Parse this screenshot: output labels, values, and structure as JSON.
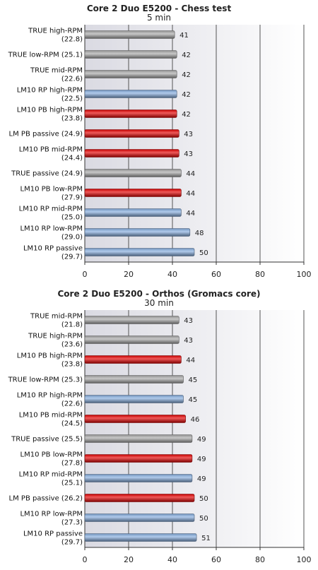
{
  "chart_data": [
    {
      "type": "bar",
      "orientation": "horizontal",
      "title": "Core 2 Duo E5200 - Chess test",
      "subtitle": "5 min",
      "xlim": [
        0,
        100
      ],
      "xticks": [
        "0",
        "20",
        "40",
        "60",
        "80",
        "100"
      ],
      "grid": true,
      "colors": {
        "TRUE": "#a9a9a9",
        "PB": "#e60000",
        "RP": "#86aee0"
      },
      "categories": [
        {
          "label": [
            "TRUE high-RPM",
            "(22.8)"
          ],
          "value": 41,
          "group": "TRUE"
        },
        {
          "label": [
            "TRUE low-RPM (25.1)"
          ],
          "value": 42,
          "group": "TRUE"
        },
        {
          "label": [
            "TRUE mid-RPM",
            "(22.6)"
          ],
          "value": 42,
          "group": "TRUE"
        },
        {
          "label": [
            "LM10 RP high-RPM",
            "(22.5)"
          ],
          "value": 42,
          "group": "RP"
        },
        {
          "label": [
            "LM10 PB high-RPM",
            "(23.8)"
          ],
          "value": 42,
          "group": "PB"
        },
        {
          "label": [
            "LM PB passive (24.9)"
          ],
          "value": 43,
          "group": "PB"
        },
        {
          "label": [
            "LM10 PB mid-RPM",
            "(24.4)"
          ],
          "value": 43,
          "group": "PB"
        },
        {
          "label": [
            "TRUE passive (24.9)"
          ],
          "value": 44,
          "group": "TRUE"
        },
        {
          "label": [
            "LM10 PB low-RPM",
            "(27.9)"
          ],
          "value": 44,
          "group": "PB"
        },
        {
          "label": [
            "LM10 RP mid-RPM",
            "(25.0)"
          ],
          "value": 44,
          "group": "RP"
        },
        {
          "label": [
            "LM10 RP low-RPM",
            "(29.0)"
          ],
          "value": 48,
          "group": "RP"
        },
        {
          "label": [
            "LM10 RP passive",
            "(29.7)"
          ],
          "value": 50,
          "group": "RP"
        }
      ]
    },
    {
      "type": "bar",
      "orientation": "horizontal",
      "title": "Core 2 Duo E5200 - Orthos (Gromacs core)",
      "subtitle": "30 min",
      "xlim": [
        0,
        100
      ],
      "xticks": [
        "0",
        "20",
        "40",
        "60",
        "80",
        "100"
      ],
      "grid": true,
      "colors": {
        "TRUE": "#a9a9a9",
        "PB": "#e60000",
        "RP": "#86aee0"
      },
      "categories": [
        {
          "label": [
            "TRUE mid-RPM",
            "(21.8)"
          ],
          "value": 43,
          "group": "TRUE"
        },
        {
          "label": [
            "TRUE high-RPM",
            "(23.6)"
          ],
          "value": 43,
          "group": "TRUE"
        },
        {
          "label": [
            "LM10 PB high-RPM",
            "(23.8)"
          ],
          "value": 44,
          "group": "PB"
        },
        {
          "label": [
            "TRUE low-RPM (25.3)"
          ],
          "value": 45,
          "group": "TRUE"
        },
        {
          "label": [
            "LM10 RP high-RPM",
            "(22.6)"
          ],
          "value": 45,
          "group": "RP"
        },
        {
          "label": [
            "LM10 PB mid-RPM",
            "(24.5)"
          ],
          "value": 46,
          "group": "PB"
        },
        {
          "label": [
            "TRUE passive (25.5)"
          ],
          "value": 49,
          "group": "TRUE"
        },
        {
          "label": [
            "LM10 PB low-RPM",
            "(27.8)"
          ],
          "value": 49,
          "group": "PB"
        },
        {
          "label": [
            "LM10 RP mid-RPM",
            "(25.1)"
          ],
          "value": 49,
          "group": "RP"
        },
        {
          "label": [
            "LM PB passive (26.2)"
          ],
          "value": 50,
          "group": "PB"
        },
        {
          "label": [
            "LM10 RP low-RPM",
            "(27.3)"
          ],
          "value": 50,
          "group": "RP"
        },
        {
          "label": [
            "LM10 RP passive",
            "(29.7)"
          ],
          "value": 51,
          "group": "RP"
        }
      ]
    }
  ]
}
